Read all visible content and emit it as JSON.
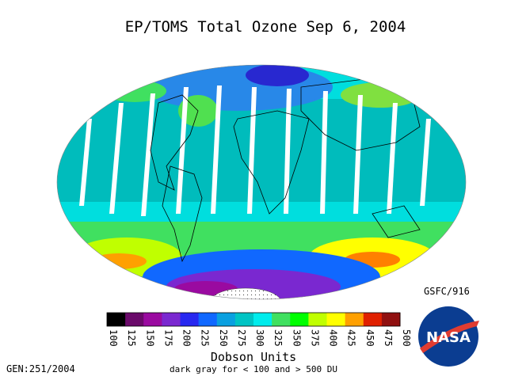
{
  "title": "EP/TOMS Total Ozone Sep  6, 2004",
  "colorbar": {
    "ticks": [
      100,
      125,
      150,
      175,
      200,
      225,
      250,
      275,
      300,
      325,
      350,
      375,
      400,
      425,
      450,
      475,
      500
    ],
    "colors": [
      "#000000",
      "#6a0a6a",
      "#9a0aa0",
      "#7a28d0",
      "#2828f0",
      "#1068ff",
      "#0aa0e0",
      "#00c4c4",
      "#00ecec",
      "#40e060",
      "#00ff00",
      "#c0ff00",
      "#ffff00",
      "#ffa000",
      "#e02000",
      "#901010"
    ],
    "label": "Dobson Units",
    "note": "dark gray for < 100 and > 500 DU"
  },
  "source": "GSFC/916",
  "gen": "GEN:251/2004",
  "logo": "NASA"
}
